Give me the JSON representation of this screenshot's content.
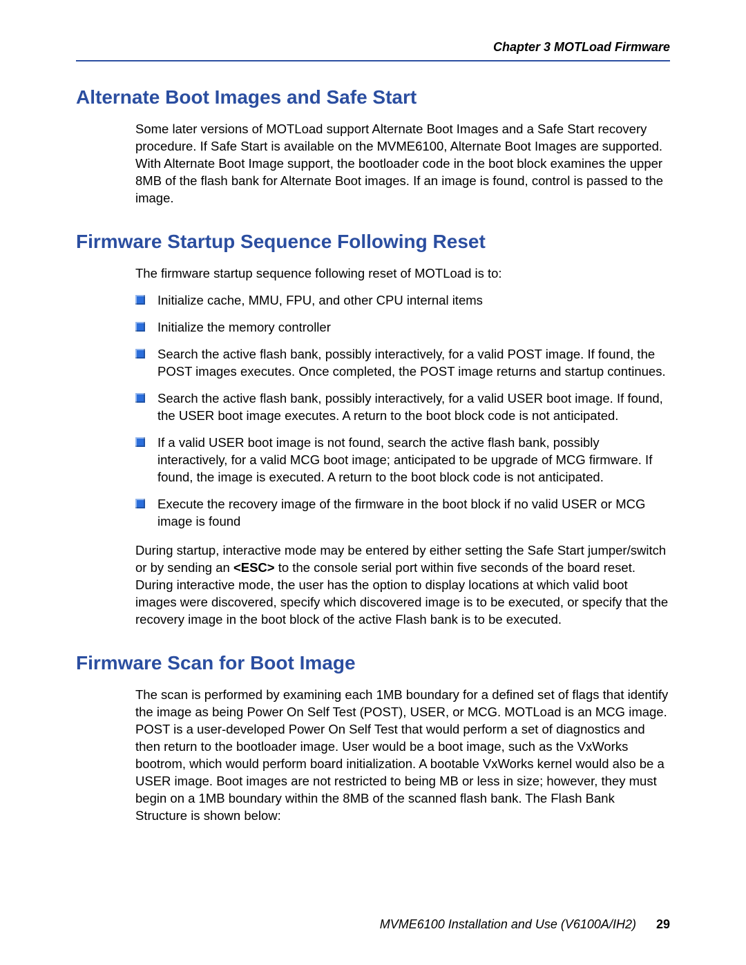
{
  "colors": {
    "heading": "#2b4ea0",
    "rule": "#2b4ea0",
    "bullet": "#2b6edb",
    "text": "#000000",
    "background": "#ffffff"
  },
  "typography": {
    "heading_fontsize": 28,
    "body_fontsize": 18.5,
    "header_fontsize": 18,
    "footer_fontsize": 18
  },
  "header": {
    "chapter": "Chapter 3  MOTLoad Firmware"
  },
  "sections": [
    {
      "title": "Alternate Boot Images and Safe Start",
      "paragraphs": [
        "Some later versions of MOTLoad support Alternate Boot Images and a Safe Start recovery procedure. If Safe Start is available on the MVME6100, Alternate Boot Images are supported. With Alternate Boot Image support, the bootloader code in the boot block examines the upper 8MB of the flash bank for Alternate Boot images. If an image is found, control is passed to the image."
      ]
    },
    {
      "title": "Firmware Startup Sequence Following Reset",
      "intro": "The firmware startup sequence following reset of MOTLoad is to:",
      "bullets": [
        "Initialize cache, MMU, FPU, and other CPU internal items",
        "Initialize the memory controller",
        "Search the active flash bank, possibly interactively, for a valid POST image. If found, the POST images executes. Once completed, the POST image returns and startup continues.",
        "Search the active flash bank, possibly interactively, for a valid USER boot image. If found, the USER boot image executes. A return to the boot block code is not anticipated.",
        "If a valid USER boot image is not found, search the active flash bank, possibly interactively, for a valid MCG boot image; anticipated to be upgrade of MCG firmware. If found, the image is executed. A return to the boot block code is not anticipated.",
        "Execute the recovery image of the firmware in the boot block if no valid USER or MCG image is found"
      ],
      "after_pre": "During startup, interactive mode may be entered by either setting the Safe Start jumper/switch or by sending an ",
      "after_esc": "<ESC>",
      "after_post": " to the console serial port within five seconds of the board reset. During interactive mode, the user has the option to display locations at which valid boot images were discovered, specify which discovered image is to be executed, or specify that the recovery image in the boot block of the active Flash bank is to be executed."
    },
    {
      "title": "Firmware Scan for Boot Image",
      "paragraphs": [
        "The scan is performed by examining each 1MB boundary for a defined set of flags that identify the image as being Power On Self Test (POST), USER, or MCG. MOTLoad is an MCG image. POST is a user-developed Power On Self Test that would perform a set of diagnostics and then return to the bootloader image. User would be a boot image, such as the VxWorks bootrom, which would perform board initialization. A bootable VxWorks kernel would also be a USER image. Boot images are not restricted to being MB or less in size; however, they must begin on a 1MB boundary within the 8MB of the scanned flash bank. The Flash Bank Structure is shown below:"
      ]
    }
  ],
  "footer": {
    "doc": "MVME6100 Installation and Use (V6100A/IH2)",
    "page": "29"
  }
}
